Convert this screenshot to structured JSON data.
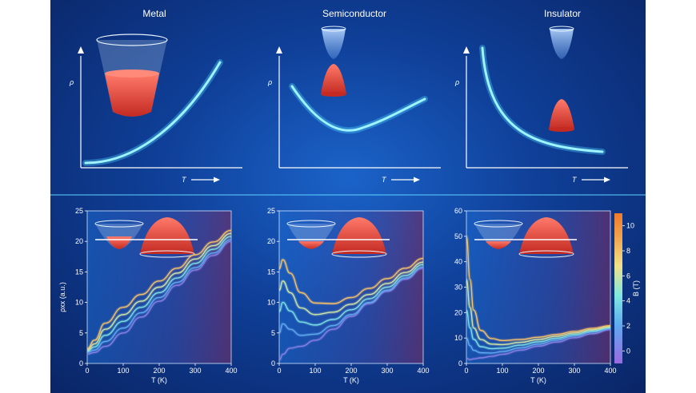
{
  "top_panels": [
    {
      "title": "Metal",
      "ylabel": "ρ",
      "xlabel": "T"
    },
    {
      "title": "Semiconductor",
      "ylabel": "ρ",
      "xlabel": "T"
    },
    {
      "title": "Insulator",
      "ylabel": "ρ",
      "xlabel": "T"
    }
  ],
  "colors": {
    "bg_dark": "#0a2566",
    "bg_mid": "#1b63c9",
    "curve": "#9ef3ff",
    "band_red": "#e8463a",
    "band_blue": "#7fb2e8"
  },
  "chart_data": [
    {
      "type": "line",
      "xlabel": "T (K)",
      "ylabel": "ρxx (a.u.)",
      "xlim": [
        0,
        400
      ],
      "ylim": [
        0,
        25
      ],
      "xticks": [
        0,
        100,
        200,
        300,
        400
      ],
      "yticks": [
        0,
        5,
        10,
        15,
        20,
        25
      ],
      "series": [
        {
          "field_T": 0,
          "x": [
            0,
            20,
            50,
            100,
            150,
            200,
            250,
            300,
            350,
            400
          ],
          "y": [
            1.5,
            1.8,
            2.8,
            5.0,
            7.6,
            10.2,
            12.8,
            15.3,
            17.7,
            20.0
          ]
        },
        {
          "field_T": 2,
          "x": [
            0,
            20,
            50,
            100,
            150,
            200,
            250,
            300,
            350,
            400
          ],
          "y": [
            1.8,
            2.2,
            3.6,
            5.8,
            8.3,
            10.8,
            13.3,
            15.7,
            18.1,
            20.3
          ]
        },
        {
          "field_T": 4,
          "x": [
            0,
            20,
            50,
            100,
            150,
            200,
            250,
            300,
            350,
            400
          ],
          "y": [
            2.0,
            2.7,
            4.6,
            6.9,
            9.2,
            11.6,
            14.0,
            16.4,
            18.7,
            20.8
          ]
        },
        {
          "field_T": 6,
          "x": [
            0,
            20,
            50,
            100,
            150,
            200,
            250,
            300,
            350,
            400
          ],
          "y": [
            2.2,
            3.2,
            5.6,
            8.0,
            10.2,
            12.5,
            14.8,
            17.1,
            19.3,
            21.3
          ]
        },
        {
          "field_T": 8,
          "x": [
            0,
            20,
            50,
            100,
            150,
            200,
            250,
            300,
            350,
            400
          ],
          "y": [
            2.4,
            3.8,
            6.6,
            9.2,
            11.3,
            13.5,
            15.6,
            17.8,
            19.9,
            21.8
          ]
        }
      ]
    },
    {
      "type": "line",
      "xlabel": "T (K)",
      "ylabel": "",
      "xlim": [
        0,
        400
      ],
      "ylim": [
        0,
        25
      ],
      "xticks": [
        0,
        100,
        200,
        300,
        400
      ],
      "yticks": [
        0,
        5,
        10,
        15,
        20,
        25
      ],
      "series": [
        {
          "field_T": 0,
          "x": [
            0,
            10,
            30,
            60,
            100,
            150,
            200,
            250,
            300,
            350,
            400
          ],
          "y": [
            0.5,
            1.5,
            2.5,
            2.8,
            3.8,
            5.6,
            7.7,
            9.8,
            11.8,
            13.8,
            15.6
          ]
        },
        {
          "field_T": 2,
          "x": [
            0,
            10,
            30,
            60,
            100,
            150,
            200,
            250,
            300,
            350,
            400
          ],
          "y": [
            5.0,
            6.5,
            5.6,
            4.6,
            4.8,
            6.2,
            8.0,
            10.0,
            12.0,
            14.0,
            15.8
          ]
        },
        {
          "field_T": 4,
          "x": [
            0,
            10,
            30,
            60,
            100,
            150,
            200,
            250,
            300,
            350,
            400
          ],
          "y": [
            8.5,
            10.0,
            8.6,
            6.8,
            6.3,
            7.2,
            8.8,
            10.6,
            12.5,
            14.4,
            16.2
          ]
        },
        {
          "field_T": 6,
          "x": [
            0,
            10,
            30,
            60,
            100,
            150,
            200,
            250,
            300,
            350,
            400
          ],
          "y": [
            12.0,
            13.5,
            11.6,
            9.1,
            8.0,
            8.4,
            9.7,
            11.3,
            13.1,
            14.9,
            16.6
          ]
        },
        {
          "field_T": 8,
          "x": [
            0,
            10,
            30,
            60,
            100,
            150,
            200,
            250,
            300,
            350,
            400
          ],
          "y": [
            15.5,
            17.0,
            14.8,
            11.6,
            9.9,
            9.8,
            10.8,
            12.3,
            13.9,
            15.6,
            17.2
          ]
        }
      ]
    },
    {
      "type": "line",
      "xlabel": "T (K)",
      "ylabel": "",
      "xlim": [
        0,
        400
      ],
      "ylim": [
        0,
        60
      ],
      "xticks": [
        0,
        100,
        200,
        300,
        400
      ],
      "yticks": [
        0,
        10,
        20,
        30,
        40,
        50,
        60
      ],
      "series": [
        {
          "field_T": 0,
          "x": [
            0,
            10,
            20,
            40,
            70,
            100,
            150,
            200,
            250,
            300,
            350,
            400
          ],
          "y": [
            2,
            1.5,
            1.8,
            2.2,
            2.8,
            3.6,
            5.2,
            6.8,
            8.4,
            10.1,
            11.7,
            13.3
          ]
        },
        {
          "field_T": 2,
          "x": [
            0,
            10,
            20,
            40,
            70,
            100,
            150,
            200,
            250,
            300,
            350,
            400
          ],
          "y": [
            10,
            7,
            5.2,
            4.2,
            4.1,
            4.7,
            6.1,
            7.6,
            9.2,
            10.8,
            12.3,
            13.7
          ]
        },
        {
          "field_T": 4,
          "x": [
            0,
            10,
            20,
            40,
            70,
            100,
            150,
            200,
            250,
            300,
            350,
            400
          ],
          "y": [
            21,
            14,
            9.5,
            6.6,
            5.8,
            6.0,
            7.2,
            8.5,
            9.9,
            11.4,
            12.8,
            14.1
          ]
        },
        {
          "field_T": 6,
          "x": [
            0,
            10,
            20,
            40,
            70,
            100,
            150,
            200,
            250,
            300,
            350,
            400
          ],
          "y": [
            33,
            22,
            14,
            9.4,
            7.6,
            7.4,
            8.3,
            9.4,
            10.7,
            12.0,
            13.3,
            14.5
          ]
        },
        {
          "field_T": 8,
          "x": [
            0,
            10,
            20,
            40,
            70,
            100,
            150,
            200,
            250,
            300,
            350,
            400
          ],
          "y": [
            50,
            33,
            21,
            13,
            9.8,
            9.0,
            9.4,
            10.3,
            11.4,
            12.6,
            13.8,
            14.9
          ]
        }
      ]
    }
  ],
  "colorbar": {
    "label": "B (T)",
    "ticks": [
      0,
      2,
      4,
      6,
      8,
      10
    ],
    "range": [
      -1,
      11
    ]
  }
}
